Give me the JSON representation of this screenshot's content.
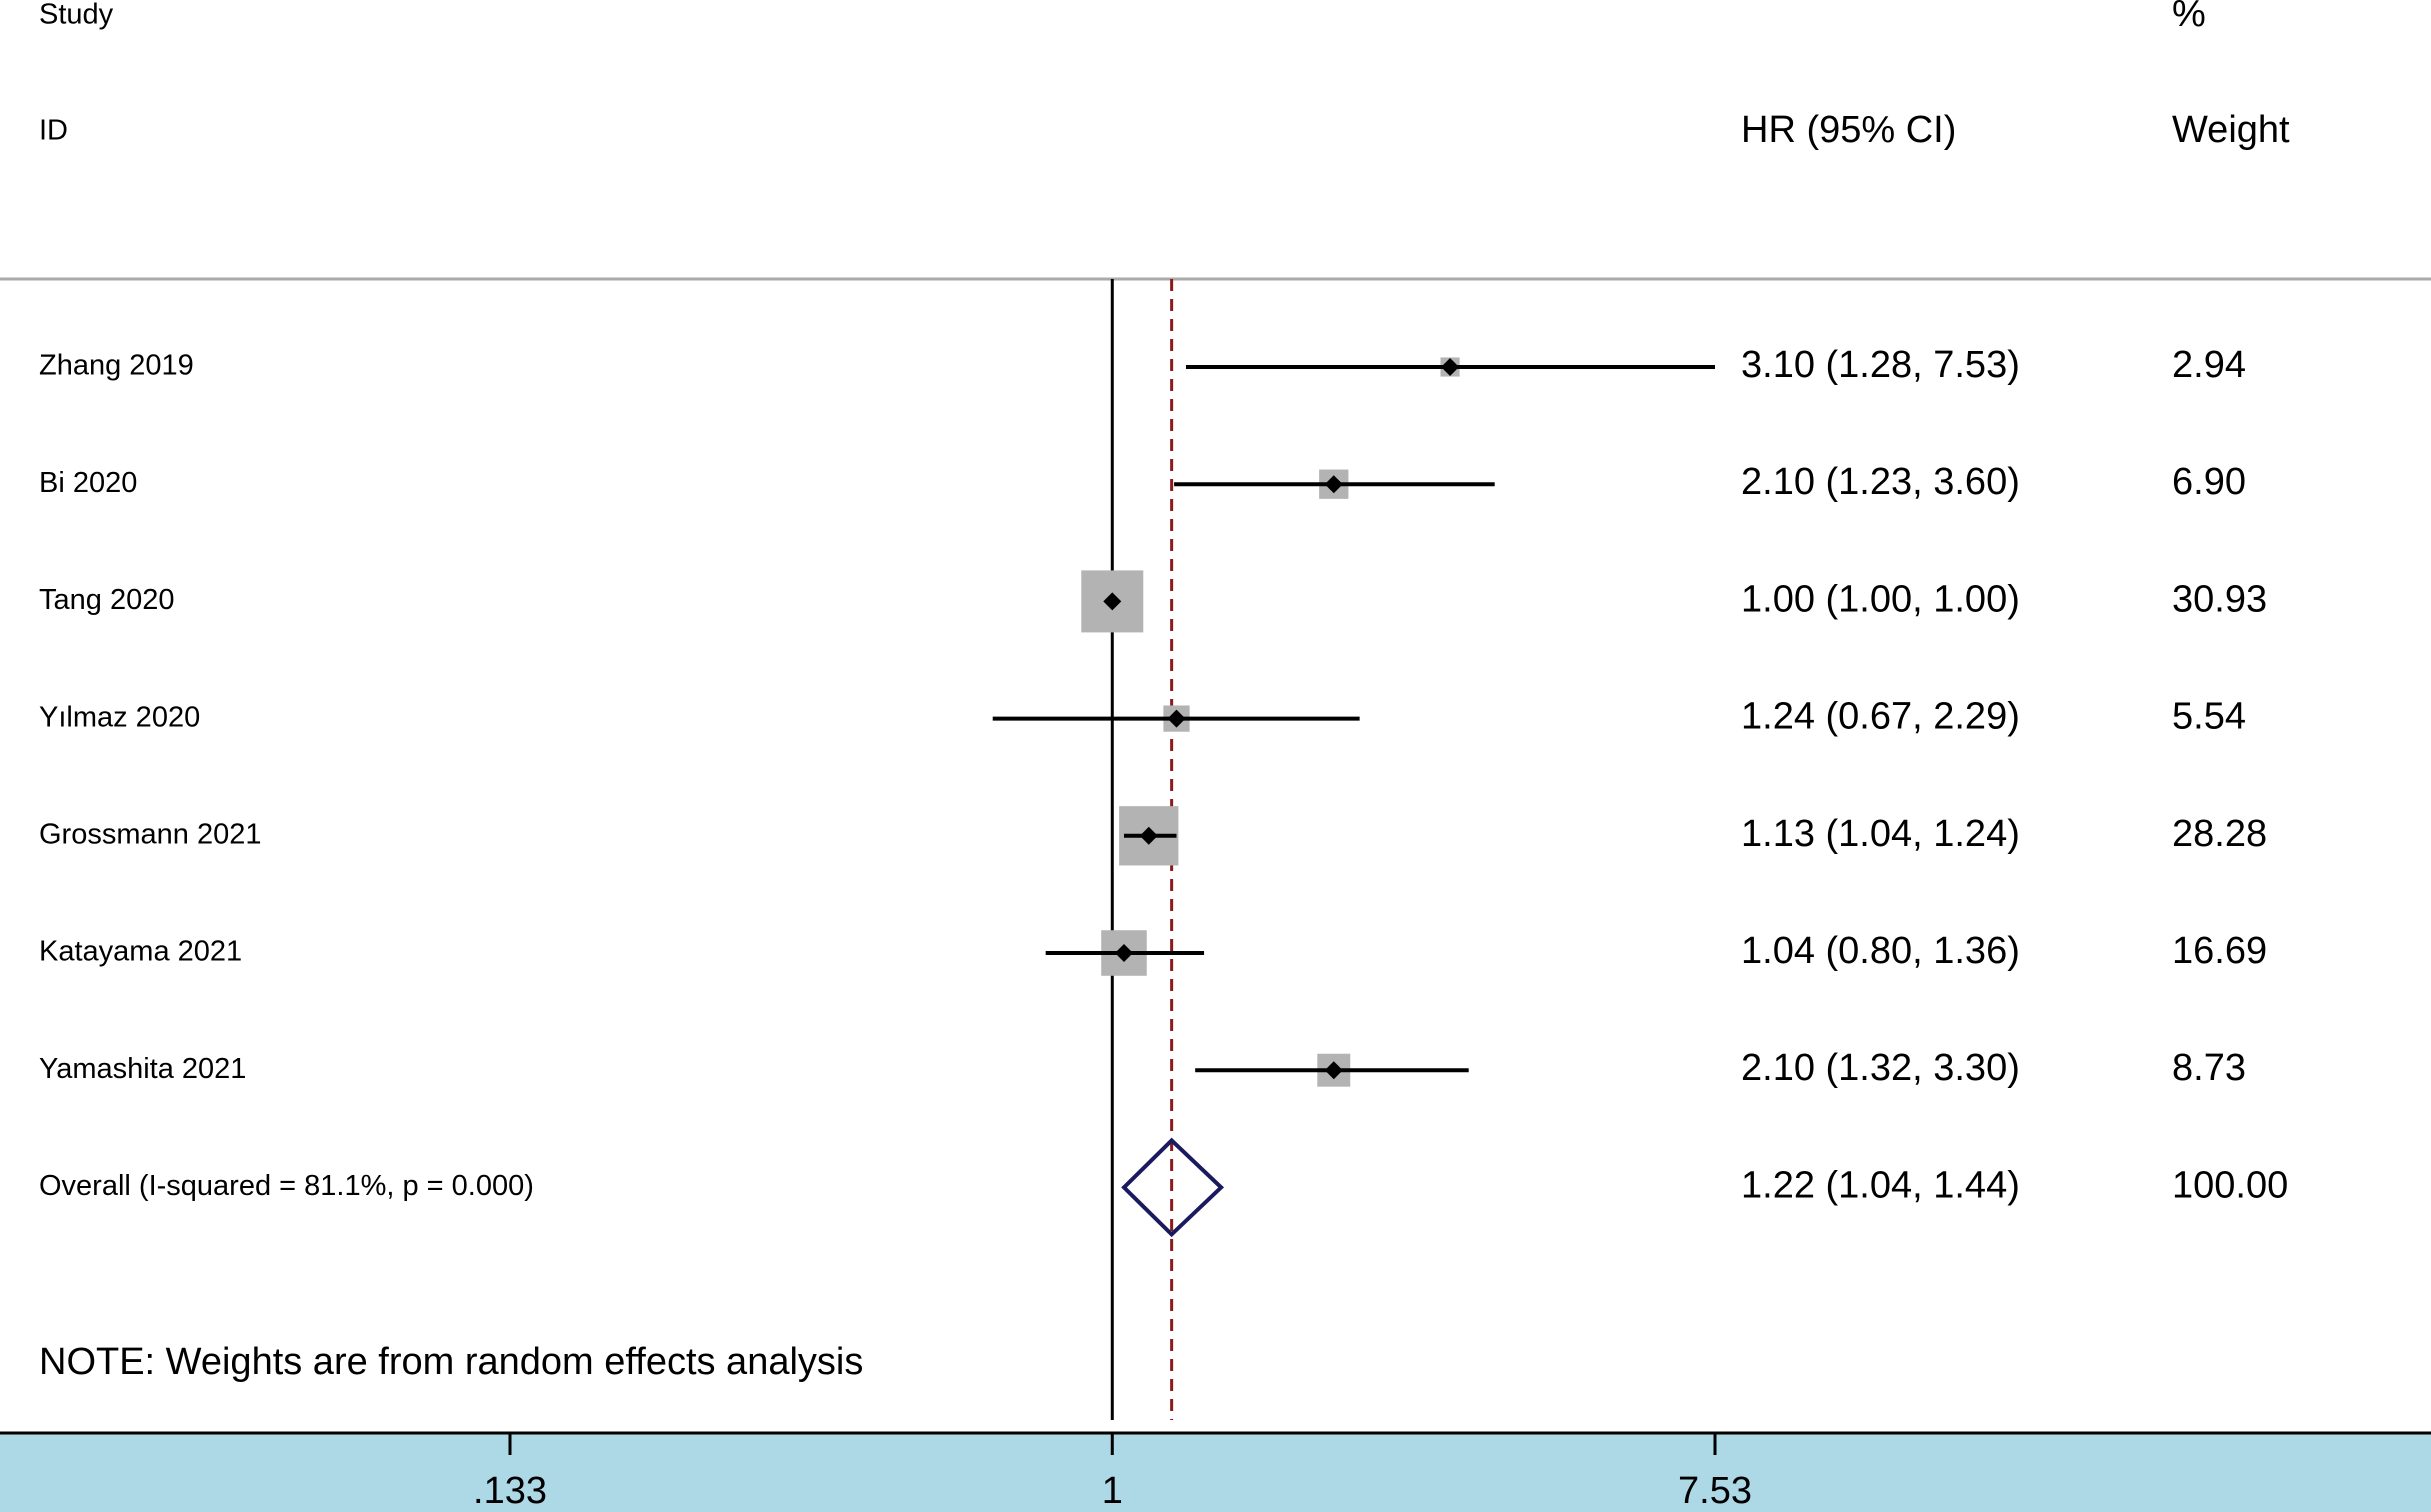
{
  "chart_data": {
    "type": "forest",
    "headers": {
      "study": "Study",
      "id": "ID",
      "effect": "HR (95% CI)",
      "weight_top": "%",
      "weight": "Weight"
    },
    "studies": [
      {
        "name": "Zhang 2019",
        "hr": 3.1,
        "lo": 1.28,
        "hi": 7.53,
        "label": "3.10 (1.28, 7.53)",
        "weight": 2.94,
        "weight_label": "2.94"
      },
      {
        "name": "Bi 2020",
        "hr": 2.1,
        "lo": 1.23,
        "hi": 3.6,
        "label": "2.10 (1.23, 3.60)",
        "weight": 6.9,
        "weight_label": "6.90"
      },
      {
        "name": "Tang 2020",
        "hr": 1.0,
        "lo": 1.0,
        "hi": 1.0,
        "label": "1.00 (1.00, 1.00)",
        "weight": 30.93,
        "weight_label": "30.93"
      },
      {
        "name": "Yılmaz 2020",
        "hr": 1.24,
        "lo": 0.67,
        "hi": 2.29,
        "label": "1.24 (0.67, 2.29)",
        "weight": 5.54,
        "weight_label": "5.54"
      },
      {
        "name": "Grossmann 2021",
        "hr": 1.13,
        "lo": 1.04,
        "hi": 1.24,
        "label": "1.13 (1.04, 1.24)",
        "weight": 28.28,
        "weight_label": "28.28"
      },
      {
        "name": "Katayama 2021",
        "hr": 1.04,
        "lo": 0.8,
        "hi": 1.36,
        "label": "1.04 (0.80, 1.36)",
        "weight": 16.69,
        "weight_label": "16.69"
      },
      {
        "name": "Yamashita 2021",
        "hr": 2.1,
        "lo": 1.32,
        "hi": 3.3,
        "label": "2.10 (1.32, 3.30)",
        "weight": 8.73,
        "weight_label": "8.73"
      }
    ],
    "overall": {
      "name": "Overall  (I-squared = 81.1%, p = 0.000)",
      "hr": 1.22,
      "lo": 1.04,
      "hi": 1.44,
      "label": "1.22 (1.04, 1.44)",
      "weight_label": "100.00"
    },
    "note": "NOTE: Weights are from random effects analysis",
    "xscale": "log",
    "xlim": [
      0.133,
      7.53
    ],
    "xticks": [
      {
        "value": 0.133,
        "label": ".133"
      },
      1,
      {
        "value": 7.53,
        "label": "7.53"
      }
    ],
    "reference_line": 1,
    "box_color": "#b3b3b3",
    "diamond_color": "#1a1a5e",
    "pooled_line_color": "#8b1a1a",
    "axis_band_color": "#add8e6"
  }
}
